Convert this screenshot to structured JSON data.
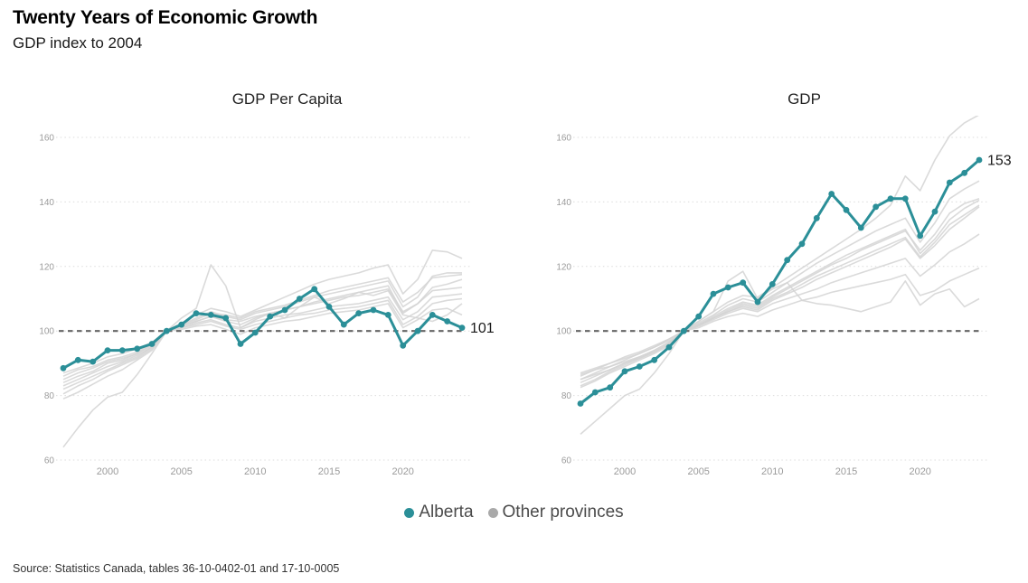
{
  "header": {
    "title": "Twenty Years of Economic Growth",
    "subtitle": "GDP index to 2004"
  },
  "legend": [
    {
      "label": "Alberta",
      "color": "#2b8f98"
    },
    {
      "label": "Other provinces",
      "color": "#a9a9a9"
    }
  ],
  "source": "Source: Statistics Canada, tables 36-10-0402-01 and 17-10-0005",
  "colors": {
    "alberta": "#2b8f98",
    "others_line": "#d3d3d3",
    "baseline": "#666666",
    "grid": "#dcdcdc",
    "tick": "#9b9b9b",
    "end_label": "#1a1a1a"
  },
  "chart_data": [
    {
      "type": "line",
      "title": "GDP Per Capita",
      "xlabel": "",
      "ylabel": "",
      "ylim": [
        60,
        160
      ],
      "y_ticks": [
        60,
        80,
        100,
        120,
        140,
        160
      ],
      "x_ticks": [
        2000,
        2005,
        2010,
        2015,
        2020
      ],
      "baseline": 100,
      "end_label": "101",
      "grid": "dotted",
      "x": [
        1997,
        1998,
        1999,
        2000,
        2001,
        2002,
        2003,
        2004,
        2005,
        2006,
        2007,
        2008,
        2009,
        2010,
        2011,
        2012,
        2013,
        2014,
        2015,
        2016,
        2017,
        2018,
        2019,
        2020,
        2021,
        2022,
        2023,
        2024
      ],
      "series": [
        {
          "name": "Alberta",
          "values": [
            88.5,
            91,
            90.5,
            94,
            94,
            94.5,
            96,
            100,
            102,
            105.5,
            105,
            104,
            96,
            99.5,
            104.5,
            106.5,
            110,
            113,
            107.5,
            102,
            105.5,
            106.5,
            105,
            95.5,
            100,
            105,
            103,
            101
          ]
        },
        {
          "name": "other-1",
          "values": [
            64,
            70,
            75.5,
            79.5,
            81,
            86.5,
            93,
            100,
            104,
            107,
            120.5,
            114,
            101,
            103.5,
            105.5,
            104,
            107.5,
            110.5,
            108.5,
            110,
            112,
            111,
            112.5,
            105,
            104,
            103,
            105,
            108.5
          ]
        },
        {
          "name": "other-2",
          "values": [
            84,
            86,
            87.5,
            90,
            91,
            93,
            96,
            100,
            102.5,
            105,
            107,
            106,
            104.5,
            106.5,
            108.5,
            110.5,
            112.5,
            114.5,
            116,
            117,
            118,
            119.5,
            120.5,
            111.5,
            116,
            125,
            124.5,
            122.5
          ]
        },
        {
          "name": "other-3",
          "values": [
            86,
            88,
            89,
            91,
            92,
            93.5,
            96.5,
            100,
            102,
            104,
            106,
            104.5,
            103.5,
            105.5,
            106.5,
            107.5,
            109,
            110.5,
            111.5,
            112.5,
            113.5,
            114.5,
            115.5,
            107.5,
            110.5,
            117,
            118,
            118
          ]
        },
        {
          "name": "other-4",
          "values": [
            85,
            87,
            88.5,
            90.5,
            91.5,
            93,
            95.5,
            100,
            102,
            103.5,
            105.5,
            105,
            104,
            106,
            107,
            108,
            109.5,
            111,
            112.5,
            113.5,
            114.5,
            115.5,
            116.5,
            109,
            112,
            116.5,
            117,
            117.5
          ]
        },
        {
          "name": "other-5",
          "values": [
            83,
            85,
            87,
            89,
            90.5,
            92.5,
            95,
            100,
            101.5,
            103,
            104.5,
            103,
            102,
            104,
            105.5,
            106.5,
            107.5,
            109,
            110,
            111,
            112,
            113,
            114,
            105.5,
            108.5,
            113.5,
            114.5,
            116
          ]
        },
        {
          "name": "other-6",
          "values": [
            87,
            88.5,
            90,
            92,
            93,
            94.5,
            96.5,
            100,
            101.5,
            103,
            104.5,
            103.5,
            103,
            104.5,
            105.5,
            106.5,
            107.5,
            108.5,
            109.5,
            110.5,
            111,
            112,
            113,
            106,
            108.5,
            112.5,
            113,
            113.5
          ]
        },
        {
          "name": "other-7",
          "values": [
            82,
            84,
            86,
            88,
            90,
            92,
            95,
            100,
            101,
            102.5,
            103.5,
            102,
            101,
            103,
            104,
            105,
            105.5,
            106.5,
            107.5,
            108,
            108.5,
            109.5,
            110.5,
            103.5,
            106,
            110.5,
            111,
            111.5
          ]
        },
        {
          "name": "other-8",
          "values": [
            80.5,
            83,
            85,
            87.5,
            89.5,
            91.5,
            94.5,
            100,
            101,
            102,
            103,
            101.5,
            100.5,
            102,
            103,
            104,
            105,
            105.5,
            106.5,
            107,
            107.5,
            108.5,
            109.5,
            102,
            104.5,
            108.5,
            109.5,
            110
          ]
        },
        {
          "name": "other-9",
          "values": [
            79,
            81,
            83.5,
            86,
            88,
            91,
            94,
            100,
            100.5,
            101.5,
            102,
            100.5,
            99,
            101,
            102,
            103,
            103.5,
            104.5,
            105.5,
            106,
            106.5,
            107.5,
            108.5,
            101,
            103.5,
            106.5,
            107,
            105
          ]
        }
      ]
    },
    {
      "type": "line",
      "title": "GDP",
      "xlabel": "",
      "ylabel": "",
      "ylim": [
        60,
        160
      ],
      "y_ticks": [
        60,
        80,
        100,
        120,
        140,
        160
      ],
      "x_ticks": [
        2000,
        2005,
        2010,
        2015,
        2020
      ],
      "baseline": 100,
      "end_label": "153",
      "grid": "dotted",
      "x": [
        1997,
        1998,
        1999,
        2000,
        2001,
        2002,
        2003,
        2004,
        2005,
        2006,
        2007,
        2008,
        2009,
        2010,
        2011,
        2012,
        2013,
        2014,
        2015,
        2016,
        2017,
        2018,
        2019,
        2020,
        2021,
        2022,
        2023,
        2024
      ],
      "series": [
        {
          "name": "Alberta",
          "values": [
            77.5,
            81,
            82.5,
            87.5,
            89,
            91,
            95,
            100,
            104.5,
            111.5,
            113.5,
            115,
            109,
            114.5,
            122,
            127,
            135,
            142.5,
            137.5,
            132,
            138.5,
            141,
            141,
            129.5,
            137,
            146,
            149,
            153
          ]
        },
        {
          "name": "other-1",
          "values": [
            85,
            87,
            89,
            91,
            93,
            95,
            97.5,
            100,
            103,
            106,
            109,
            111,
            110.5,
            113.5,
            116.5,
            119.5,
            122.5,
            125.5,
            128.5,
            131.5,
            135,
            139,
            148,
            143.5,
            153,
            160.5,
            164.5,
            167
          ]
        },
        {
          "name": "other-2",
          "values": [
            86,
            88,
            90,
            92,
            93.5,
            95.5,
            97.5,
            100,
            102.5,
            105,
            108,
            110,
            109,
            112,
            115,
            118,
            121,
            123.5,
            126,
            128.5,
            131,
            133,
            135,
            127.5,
            133.5,
            141,
            144,
            146.5
          ]
        },
        {
          "name": "other-3",
          "values": [
            87,
            88.5,
            90,
            91.5,
            93,
            95,
            97,
            100,
            102,
            104,
            106.5,
            108.5,
            107.5,
            110.5,
            113,
            115.5,
            118,
            120.5,
            122.5,
            125,
            127,
            129,
            131,
            125,
            130,
            136.5,
            139.5,
            141
          ]
        },
        {
          "name": "other-4",
          "values": [
            84,
            86,
            88,
            90,
            92,
            94,
            96.5,
            100,
            102,
            104.5,
            107,
            109,
            108,
            111,
            113.5,
            116,
            118.5,
            121,
            123.5,
            125.5,
            127.5,
            129.5,
            131.5,
            124,
            128.5,
            134.5,
            138,
            140.5
          ]
        },
        {
          "name": "other-5",
          "values": [
            82.5,
            84.5,
            87,
            89,
            91,
            93,
            95.5,
            100,
            101.5,
            104,
            106,
            107.5,
            106.5,
            109.5,
            111.5,
            113.5,
            116,
            118,
            120,
            122,
            124,
            126,
            128.5,
            122.5,
            126.5,
            131.5,
            135,
            138.5
          ]
        },
        {
          "name": "other-6",
          "values": [
            85,
            86.5,
            88,
            90,
            91.5,
            93.5,
            96,
            100,
            101.5,
            103.5,
            105.5,
            107,
            106,
            108.5,
            110,
            111.5,
            113,
            115,
            116.5,
            118,
            119.5,
            121,
            122.5,
            117,
            120.5,
            124.5,
            127,
            130
          ]
        },
        {
          "name": "other-7",
          "values": [
            86.5,
            88,
            89,
            90.5,
            92,
            94,
            96.5,
            100,
            101,
            103,
            104.5,
            105.5,
            104.5,
            106.5,
            108,
            109.5,
            110.5,
            112,
            113,
            114,
            115,
            116,
            117.5,
            111,
            112.5,
            115.5,
            117.5,
            119.5
          ]
        },
        {
          "name": "other-8",
          "values": [
            68,
            72,
            76,
            80,
            82,
            87,
            93,
            100,
            103,
            106,
            115.5,
            118.5,
            110,
            113,
            115,
            109.5,
            108.5,
            108,
            107,
            106,
            107.5,
            109,
            115.5,
            108,
            111.5,
            113,
            107.5,
            110
          ]
        },
        {
          "name": "other-9",
          "values": [
            83,
            85,
            87.5,
            89.5,
            91.5,
            93.5,
            96,
            100,
            102,
            104,
            106,
            108,
            107,
            110,
            112,
            114.5,
            117,
            119,
            121,
            123,
            125,
            127,
            129,
            123,
            127.5,
            133,
            136,
            139
          ]
        }
      ]
    }
  ]
}
